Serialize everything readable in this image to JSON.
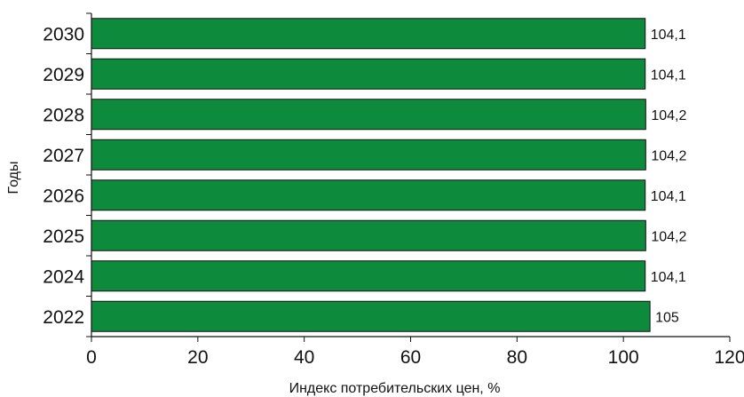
{
  "chart_data": {
    "type": "bar",
    "orientation": "horizontal",
    "categories": [
      "2022",
      "2024",
      "2025",
      "2026",
      "2027",
      "2028",
      "2029",
      "2030"
    ],
    "values": [
      105,
      104.1,
      104.2,
      104.1,
      104.2,
      104.2,
      104.1,
      104.1
    ],
    "value_labels": [
      "105",
      "104,1",
      "104,2",
      "104,1",
      "104,2",
      "104,2",
      "104,1",
      "104,1"
    ],
    "xlabel": "Индекс потребительских цен, %",
    "ylabel": "Годы",
    "xlim": [
      0,
      120
    ],
    "x_ticks": [
      "0",
      "20",
      "40",
      "60",
      "80",
      "100",
      "120"
    ],
    "grid": false,
    "colors": {
      "bar_fill": "#0d8a3c",
      "bar_stroke": "#111111",
      "axis": "#111111"
    }
  }
}
